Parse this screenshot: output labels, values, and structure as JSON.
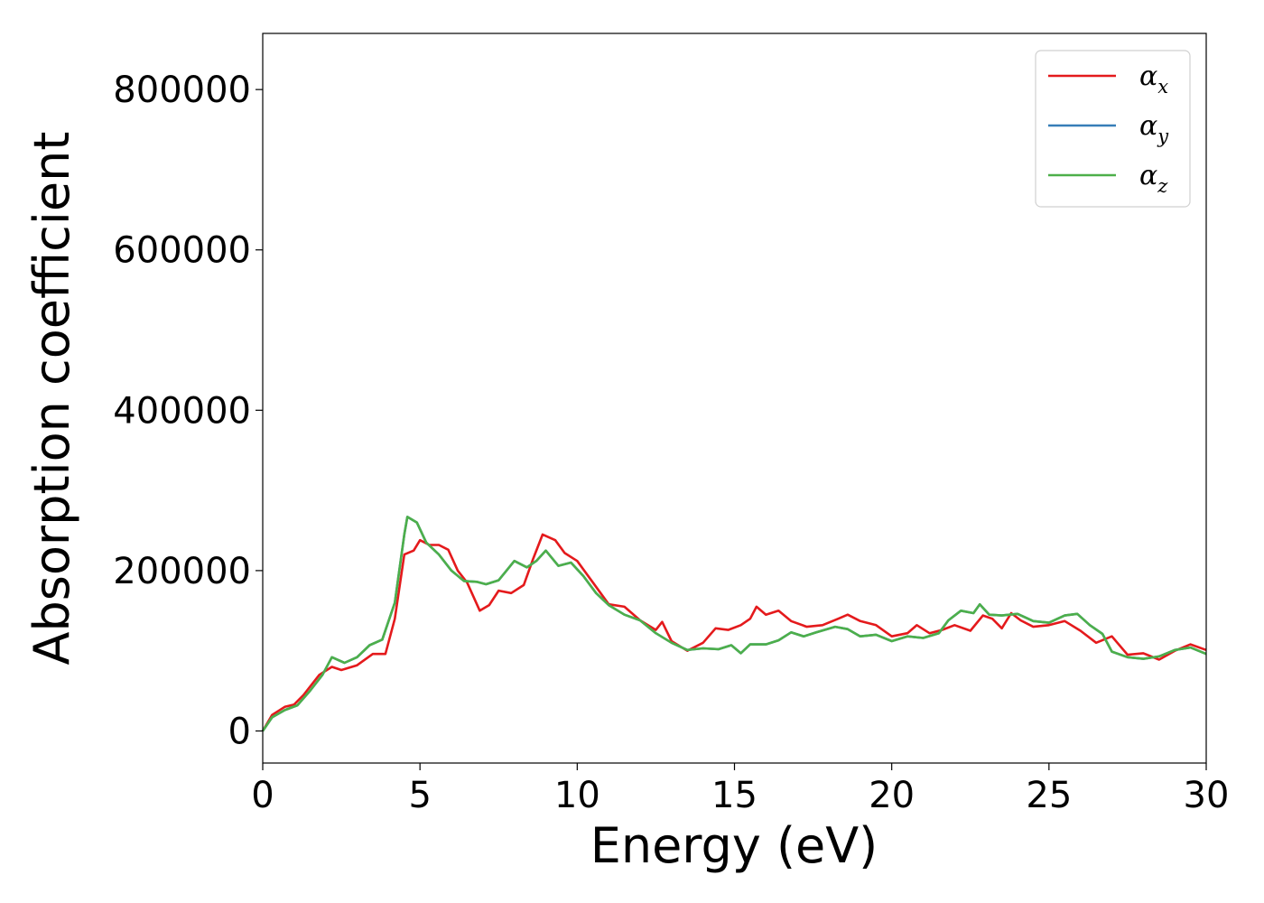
{
  "chart_data": {
    "type": "line",
    "xlabel": "Energy (eV)",
    "ylabel": "Absorption coefficient",
    "xlim": [
      0,
      30
    ],
    "ylim": [
      -40000,
      870000
    ],
    "xticks": [
      0,
      5,
      10,
      15,
      20,
      25,
      30
    ],
    "xtick_labels": [
      "0",
      "5",
      "10",
      "15",
      "20",
      "25",
      "30"
    ],
    "yticks": [
      0,
      200000,
      400000,
      600000,
      800000
    ],
    "ytick_labels": [
      "0",
      "200000",
      "400000",
      "600000",
      "800000"
    ],
    "grid": false,
    "legend_position": "top-right",
    "colors": {
      "x": "#e41a1c",
      "y": "#377eb8",
      "z": "#4daf4a"
    },
    "series": [
      {
        "name": "x",
        "legend_main": "α",
        "legend_sub": "x",
        "color": "#e41a1c",
        "points": [
          [
            0,
            0
          ],
          [
            0.3,
            20000
          ],
          [
            0.7,
            30000
          ],
          [
            1.0,
            33000
          ],
          [
            1.3,
            45000
          ],
          [
            1.8,
            70000
          ],
          [
            2.2,
            80000
          ],
          [
            2.5,
            76000
          ],
          [
            3.0,
            82000
          ],
          [
            3.5,
            96000
          ],
          [
            3.9,
            96000
          ],
          [
            4.2,
            140000
          ],
          [
            4.5,
            220000
          ],
          [
            4.8,
            225000
          ],
          [
            5.0,
            238000
          ],
          [
            5.3,
            232000
          ],
          [
            5.6,
            232000
          ],
          [
            5.9,
            226000
          ],
          [
            6.2,
            200000
          ],
          [
            6.5,
            185000
          ],
          [
            6.9,
            150000
          ],
          [
            7.2,
            157000
          ],
          [
            7.5,
            175000
          ],
          [
            7.9,
            172000
          ],
          [
            8.3,
            182000
          ],
          [
            8.6,
            215000
          ],
          [
            8.9,
            245000
          ],
          [
            9.3,
            238000
          ],
          [
            9.6,
            222000
          ],
          [
            10.0,
            212000
          ],
          [
            10.5,
            185000
          ],
          [
            11.0,
            158000
          ],
          [
            11.5,
            155000
          ],
          [
            12.0,
            138000
          ],
          [
            12.5,
            126000
          ],
          [
            12.7,
            136000
          ],
          [
            13.0,
            112000
          ],
          [
            13.5,
            100000
          ],
          [
            14.0,
            110000
          ],
          [
            14.4,
            128000
          ],
          [
            14.8,
            126000
          ],
          [
            15.2,
            132000
          ],
          [
            15.5,
            140000
          ],
          [
            15.7,
            155000
          ],
          [
            16.0,
            145000
          ],
          [
            16.4,
            150000
          ],
          [
            16.8,
            137000
          ],
          [
            17.3,
            130000
          ],
          [
            17.8,
            132000
          ],
          [
            18.3,
            140000
          ],
          [
            18.6,
            145000
          ],
          [
            19.0,
            137000
          ],
          [
            19.5,
            132000
          ],
          [
            20.0,
            118000
          ],
          [
            20.5,
            122000
          ],
          [
            20.8,
            132000
          ],
          [
            21.2,
            122000
          ],
          [
            21.6,
            126000
          ],
          [
            22.0,
            132000
          ],
          [
            22.5,
            125000
          ],
          [
            22.9,
            144000
          ],
          [
            23.2,
            140000
          ],
          [
            23.5,
            128000
          ],
          [
            23.8,
            147000
          ],
          [
            24.1,
            138000
          ],
          [
            24.5,
            130000
          ],
          [
            25.0,
            132000
          ],
          [
            25.5,
            137000
          ],
          [
            26.0,
            125000
          ],
          [
            26.5,
            110000
          ],
          [
            27.0,
            118000
          ],
          [
            27.5,
            95000
          ],
          [
            28.0,
            97000
          ],
          [
            28.5,
            89000
          ],
          [
            29.0,
            100000
          ],
          [
            29.5,
            108000
          ],
          [
            30.0,
            101000
          ]
        ]
      },
      {
        "name": "y",
        "legend_main": "α",
        "legend_sub": "y",
        "color": "#377eb8",
        "points": [
          [
            0,
            0
          ],
          [
            0.3,
            17000
          ],
          [
            0.7,
            26000
          ],
          [
            1.1,
            32000
          ],
          [
            1.5,
            50000
          ],
          [
            1.9,
            70000
          ],
          [
            2.2,
            92000
          ],
          [
            2.6,
            85000
          ],
          [
            3.0,
            92000
          ],
          [
            3.4,
            107000
          ],
          [
            3.8,
            114000
          ],
          [
            4.2,
            160000
          ],
          [
            4.5,
            245000
          ],
          [
            4.6,
            267000
          ],
          [
            4.9,
            260000
          ],
          [
            5.2,
            235000
          ],
          [
            5.6,
            220000
          ],
          [
            6.0,
            200000
          ],
          [
            6.4,
            187000
          ],
          [
            6.8,
            186000
          ],
          [
            7.1,
            183000
          ],
          [
            7.5,
            188000
          ],
          [
            8.0,
            212000
          ],
          [
            8.4,
            204000
          ],
          [
            8.7,
            212000
          ],
          [
            9.0,
            225000
          ],
          [
            9.4,
            206000
          ],
          [
            9.8,
            210000
          ],
          [
            10.2,
            193000
          ],
          [
            10.6,
            172000
          ],
          [
            11.0,
            157000
          ],
          [
            11.5,
            145000
          ],
          [
            12.0,
            138000
          ],
          [
            12.5,
            122000
          ],
          [
            13.0,
            110000
          ],
          [
            13.5,
            101000
          ],
          [
            14.0,
            103000
          ],
          [
            14.5,
            102000
          ],
          [
            14.9,
            107000
          ],
          [
            15.2,
            97000
          ],
          [
            15.5,
            108000
          ],
          [
            16.0,
            108000
          ],
          [
            16.4,
            113000
          ],
          [
            16.8,
            123000
          ],
          [
            17.2,
            118000
          ],
          [
            17.6,
            123000
          ],
          [
            18.2,
            130000
          ],
          [
            18.6,
            127000
          ],
          [
            19.0,
            118000
          ],
          [
            19.5,
            120000
          ],
          [
            20.0,
            112000
          ],
          [
            20.5,
            118000
          ],
          [
            21.0,
            116000
          ],
          [
            21.5,
            122000
          ],
          [
            21.8,
            138000
          ],
          [
            22.2,
            150000
          ],
          [
            22.6,
            147000
          ],
          [
            22.8,
            158000
          ],
          [
            23.1,
            145000
          ],
          [
            23.5,
            144000
          ],
          [
            24.0,
            146000
          ],
          [
            24.5,
            137000
          ],
          [
            25.0,
            135000
          ],
          [
            25.5,
            144000
          ],
          [
            25.9,
            146000
          ],
          [
            26.3,
            132000
          ],
          [
            26.7,
            121000
          ],
          [
            27.0,
            99000
          ],
          [
            27.5,
            92000
          ],
          [
            28.0,
            90000
          ],
          [
            28.5,
            93000
          ],
          [
            29.0,
            101000
          ],
          [
            29.5,
            104000
          ],
          [
            30.0,
            96000
          ]
        ]
      },
      {
        "name": "z",
        "legend_main": "α",
        "legend_sub": "z",
        "color": "#4daf4a",
        "points": [
          [
            0,
            0
          ],
          [
            0.3,
            17000
          ],
          [
            0.7,
            26000
          ],
          [
            1.1,
            32000
          ],
          [
            1.5,
            50000
          ],
          [
            1.9,
            70000
          ],
          [
            2.2,
            92000
          ],
          [
            2.6,
            85000
          ],
          [
            3.0,
            92000
          ],
          [
            3.4,
            107000
          ],
          [
            3.8,
            114000
          ],
          [
            4.2,
            160000
          ],
          [
            4.5,
            245000
          ],
          [
            4.6,
            267000
          ],
          [
            4.9,
            260000
          ],
          [
            5.2,
            235000
          ],
          [
            5.6,
            220000
          ],
          [
            6.0,
            200000
          ],
          [
            6.4,
            187000
          ],
          [
            6.8,
            186000
          ],
          [
            7.1,
            183000
          ],
          [
            7.5,
            188000
          ],
          [
            8.0,
            212000
          ],
          [
            8.4,
            204000
          ],
          [
            8.7,
            212000
          ],
          [
            9.0,
            225000
          ],
          [
            9.4,
            206000
          ],
          [
            9.8,
            210000
          ],
          [
            10.2,
            193000
          ],
          [
            10.6,
            172000
          ],
          [
            11.0,
            157000
          ],
          [
            11.5,
            145000
          ],
          [
            12.0,
            138000
          ],
          [
            12.5,
            122000
          ],
          [
            13.0,
            110000
          ],
          [
            13.5,
            101000
          ],
          [
            14.0,
            103000
          ],
          [
            14.5,
            102000
          ],
          [
            14.9,
            107000
          ],
          [
            15.2,
            97000
          ],
          [
            15.5,
            108000
          ],
          [
            16.0,
            108000
          ],
          [
            16.4,
            113000
          ],
          [
            16.8,
            123000
          ],
          [
            17.2,
            118000
          ],
          [
            17.6,
            123000
          ],
          [
            18.2,
            130000
          ],
          [
            18.6,
            127000
          ],
          [
            19.0,
            118000
          ],
          [
            19.5,
            120000
          ],
          [
            20.0,
            112000
          ],
          [
            20.5,
            118000
          ],
          [
            21.0,
            116000
          ],
          [
            21.5,
            122000
          ],
          [
            21.8,
            138000
          ],
          [
            22.2,
            150000
          ],
          [
            22.6,
            147000
          ],
          [
            22.8,
            158000
          ],
          [
            23.1,
            145000
          ],
          [
            23.5,
            144000
          ],
          [
            24.0,
            146000
          ],
          [
            24.5,
            137000
          ],
          [
            25.0,
            135000
          ],
          [
            25.5,
            144000
          ],
          [
            25.9,
            146000
          ],
          [
            26.3,
            132000
          ],
          [
            26.7,
            121000
          ],
          [
            27.0,
            99000
          ],
          [
            27.5,
            92000
          ],
          [
            28.0,
            90000
          ],
          [
            28.5,
            93000
          ],
          [
            29.0,
            101000
          ],
          [
            29.5,
            104000
          ],
          [
            30.0,
            96000
          ]
        ]
      }
    ]
  }
}
